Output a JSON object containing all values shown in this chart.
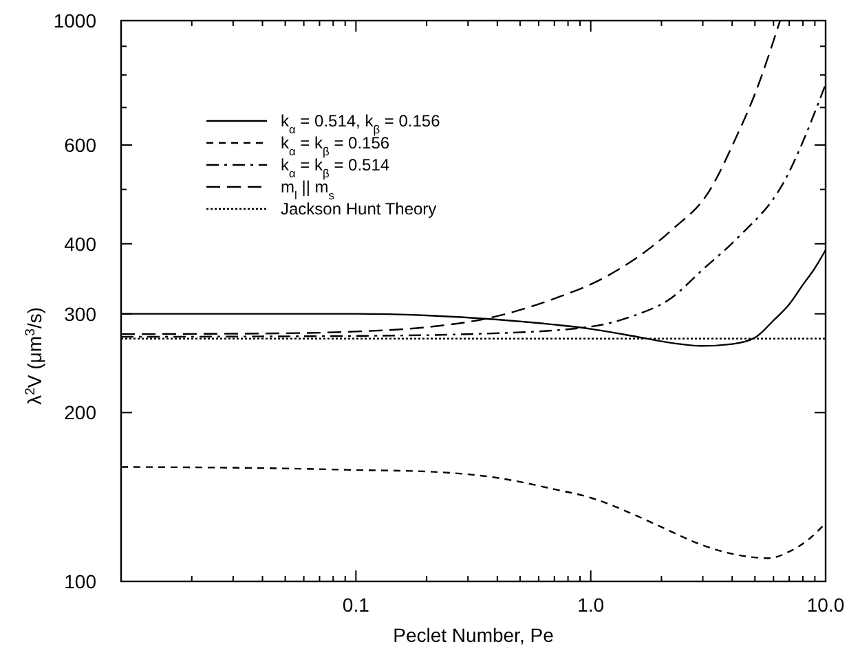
{
  "chart_data": {
    "type": "line",
    "xlabel": "Peclet Number, Pe",
    "ylabel": "λ$^{2}$V  (μm$^{3}$/s)",
    "log": "xy",
    "grid": false,
    "legend": "top left",
    "xlim": [
      0.01,
      10
    ],
    "ylim": [
      100,
      1000
    ],
    "xticks": [
      {
        "value": 0.02,
        "label": null
      },
      {
        "value": 0.03,
        "label": null
      },
      {
        "value": 0.04,
        "label": null
      },
      {
        "value": 0.05,
        "label": null
      },
      {
        "value": 0.06,
        "label": null
      },
      {
        "value": 0.07,
        "label": null
      },
      {
        "value": 0.08,
        "label": null
      },
      {
        "value": 0.09,
        "label": null
      },
      {
        "value": 0.1,
        "label": "0.1"
      },
      {
        "value": 0.2,
        "label": null
      },
      {
        "value": 0.3,
        "label": null
      },
      {
        "value": 0.4,
        "label": null
      },
      {
        "value": 0.5,
        "label": null
      },
      {
        "value": 0.6,
        "label": null
      },
      {
        "value": 0.7,
        "label": null
      },
      {
        "value": 0.8,
        "label": null
      },
      {
        "value": 0.9,
        "label": null
      },
      {
        "value": 1,
        "label": "1.0"
      },
      {
        "value": 2,
        "label": null
      },
      {
        "value": 3,
        "label": null
      },
      {
        "value": 4,
        "label": null
      },
      {
        "value": 5,
        "label": null
      },
      {
        "value": 6,
        "label": null
      },
      {
        "value": 7,
        "label": null
      },
      {
        "value": 8,
        "label": null
      },
      {
        "value": 9,
        "label": null
      },
      {
        "value": 10,
        "label": "10.0"
      }
    ],
    "yticks": [
      100,
      200,
      300,
      400,
      {
        "value": 500,
        "label": null
      },
      600,
      {
        "value": 700,
        "label": null
      },
      {
        "value": 800,
        "label": null
      },
      {
        "value": 900,
        "label": null
      },
      1000
    ],
    "series": [
      {
        "name": "k$_{α}$ = 0.514,   k$_{β}$ = 0.156",
        "color": "#000000",
        "line_style": "solid",
        "x": [
          0.01,
          0.05,
          0.1,
          0.2,
          0.4,
          0.7,
          1,
          1.5,
          2,
          3,
          4,
          5,
          6,
          7,
          8,
          9,
          10
        ],
        "values": [
          300,
          300,
          300,
          298,
          293,
          287,
          282,
          274,
          268,
          263,
          265,
          272,
          292,
          312,
          338,
          362,
          390
        ]
      },
      {
        "name": "k$_{α}$ =  k$_{β}$ = 0.156",
        "color": "#000000",
        "line_style": "dashed",
        "x": [
          0.01,
          0.05,
          0.1,
          0.2,
          0.4,
          0.7,
          1,
          1.5,
          2,
          3,
          4,
          5.7,
          7,
          8.5,
          10
        ],
        "values": [
          160,
          159,
          158,
          157,
          153,
          146,
          141,
          132,
          125,
          116,
          112,
          110,
          113,
          119,
          127
        ]
      },
      {
        "name": "k$_{α}$ =  k$_{β}$ = 0.514",
        "color": "#000000",
        "line_style": "dashdot",
        "x": [
          0.01,
          0.1,
          0.3,
          0.9,
          1.5,
          2.2,
          3,
          4.2,
          6.6,
          10
        ],
        "values": [
          273,
          274,
          276,
          283,
          297,
          320,
          360,
          409,
          513,
          770
        ]
      },
      {
        "name": "m$_{l}$  ||  m$_{s}$",
        "color": "#000000",
        "line_style": "dashed",
        "x": [
          0.01,
          0.05,
          0.1,
          0.2,
          0.37,
          0.68,
          1.17,
          2.22,
          3.16,
          4.15,
          5,
          6.4
        ],
        "values": [
          276,
          277,
          279,
          284,
          295,
          318,
          350,
          424,
          493,
          618,
          740,
          1000
        ]
      },
      {
        "name": "Jackson Hunt Theory",
        "color": "#000000",
        "line_style": "dotted",
        "x": [
          0.01,
          10
        ],
        "values": [
          271,
          271
        ]
      }
    ]
  }
}
